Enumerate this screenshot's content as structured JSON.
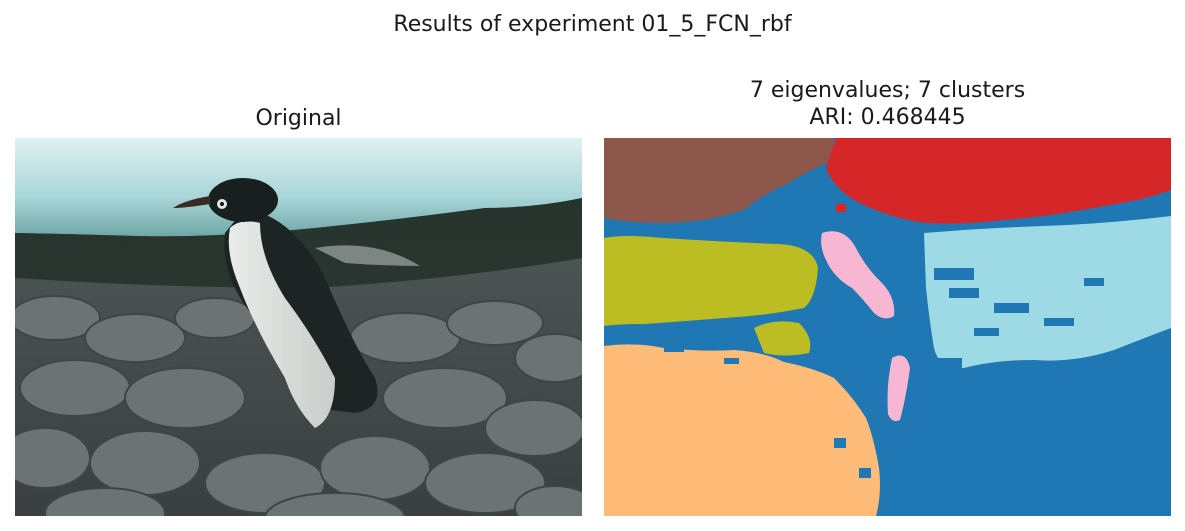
{
  "figure": {
    "suptitle": "Results of experiment 01_5_FCN_rbf",
    "left": {
      "title": "Original"
    },
    "right": {
      "title_line1": "7 eigenvalues; 7 clusters",
      "title_line2": "ARI: 0.468445"
    }
  },
  "colors": {
    "background": "#ffffff",
    "segmentation": {
      "brown": "#8c564b",
      "red": "#d62728",
      "blue": "#1f77b4",
      "pink": "#f7b6d2",
      "light_blue": "#9edae5",
      "olive": "#bcbd22",
      "orange": "#ffbb78"
    }
  },
  "icons": {
    "penguin": "penguin-photo"
  }
}
